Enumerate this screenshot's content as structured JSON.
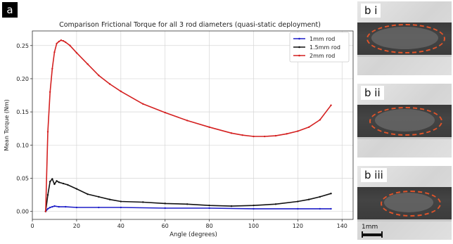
{
  "panel_label": "a",
  "chart_data": {
    "type": "line",
    "title": "Comparison Frictional Torque for all 3 rod diameters (quasi-static deployment)",
    "xlabel": "Angle (degrees)",
    "ylabel": "Mean Torque (Nm)",
    "xlim": [
      0,
      145
    ],
    "ylim": [
      -0.012,
      0.272
    ],
    "xticks": [
      0,
      20,
      40,
      60,
      80,
      100,
      120,
      140
    ],
    "yticks": [
      0.0,
      0.05,
      0.1,
      0.15,
      0.2,
      0.25
    ],
    "ytick_labels": [
      "0.00",
      "0.05",
      "0.10",
      "0.15",
      "0.20",
      "0.25"
    ],
    "grid": true,
    "legend_position": "top-right",
    "series": [
      {
        "name": "1mm rod",
        "color": "#1f1fc8",
        "x": [
          6,
          7,
          8,
          9,
          10,
          12,
          15,
          20,
          30,
          40,
          60,
          80,
          100,
          120,
          130,
          135
        ],
        "y": [
          0.0,
          0.004,
          0.006,
          0.007,
          0.008,
          0.007,
          0.007,
          0.006,
          0.006,
          0.006,
          0.005,
          0.005,
          0.004,
          0.004,
          0.004,
          0.004
        ]
      },
      {
        "name": "1.5mm rod",
        "color": "#111111",
        "x": [
          6,
          7,
          8,
          9,
          10,
          11,
          12,
          14,
          16,
          20,
          25,
          30,
          35,
          40,
          50,
          60,
          70,
          80,
          90,
          100,
          110,
          120,
          125,
          130,
          135
        ],
        "y": [
          0.0,
          0.025,
          0.045,
          0.049,
          0.041,
          0.046,
          0.044,
          0.042,
          0.04,
          0.034,
          0.026,
          0.022,
          0.018,
          0.015,
          0.014,
          0.012,
          0.011,
          0.009,
          0.008,
          0.009,
          0.011,
          0.015,
          0.018,
          0.022,
          0.027
        ]
      },
      {
        "name": "2mm rod",
        "color": "#d42020",
        "x": [
          6,
          7,
          8,
          9,
          10,
          11,
          12,
          13,
          14,
          15,
          17,
          20,
          25,
          30,
          35,
          40,
          50,
          60,
          70,
          80,
          90,
          95,
          100,
          105,
          110,
          115,
          120,
          125,
          130,
          135
        ],
        "y": [
          0.0,
          0.12,
          0.18,
          0.215,
          0.24,
          0.253,
          0.256,
          0.258,
          0.257,
          0.255,
          0.25,
          0.239,
          0.222,
          0.205,
          0.192,
          0.181,
          0.162,
          0.149,
          0.137,
          0.127,
          0.118,
          0.115,
          0.113,
          0.113,
          0.114,
          0.117,
          0.121,
          0.127,
          0.138,
          0.16
        ]
      }
    ]
  },
  "micrographs": [
    {
      "label": "b i"
    },
    {
      "label": "b ii"
    },
    {
      "label": "b iii"
    }
  ],
  "scale_bar_label": "1mm"
}
